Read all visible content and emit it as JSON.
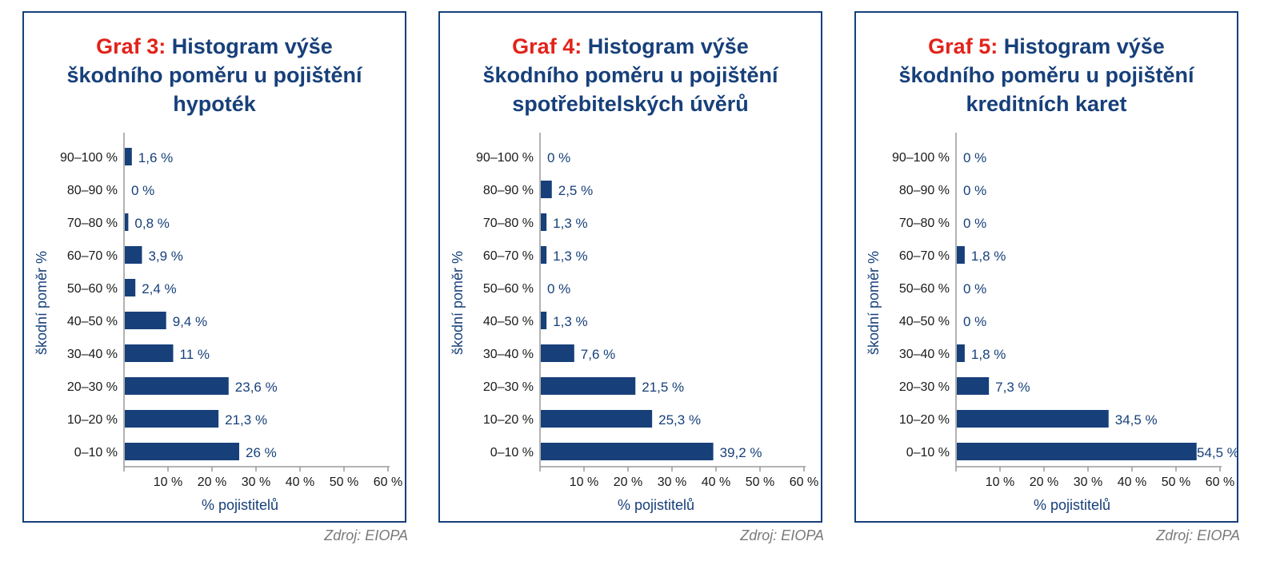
{
  "colors": {
    "bar": "#17407a",
    "title_prefix": "#e2231a",
    "title": "#17407a",
    "axis": "#999999",
    "source": "#7a7a7a"
  },
  "chart_data": [
    {
      "type": "bar",
      "orientation": "horizontal",
      "title_prefix": "Graf 3:",
      "title": "Histogram výše škodního poměru u pojištění hypoték",
      "title_lines": [
        "Histogram výše",
        "škodního poměru u pojištění",
        "hypoték"
      ],
      "categories": [
        "90–100 %",
        "80–90 %",
        "70–80 %",
        "60–70 %",
        "50–60 %",
        "40–50 %",
        "30–40 %",
        "20–30 %",
        "10–20 %",
        "0–10 %"
      ],
      "values": [
        1.6,
        0,
        0.8,
        3.9,
        2.4,
        9.4,
        11,
        23.6,
        21.3,
        26
      ],
      "value_labels": [
        "1,6 %",
        "0 %",
        "0,8 %",
        "3,9 %",
        "2,4 %",
        "9,4 %",
        "11 %",
        "23,6 %",
        "21,3 %",
        "26 %"
      ],
      "xlabel": "% pojistitelů",
      "ylabel": "škodní poměr %",
      "xlim": [
        0,
        60
      ],
      "xticks": [
        "10 %",
        "20 %",
        "30 %",
        "40 %",
        "50 %",
        "60 %"
      ],
      "source": "Zdroj: EIOPA"
    },
    {
      "type": "bar",
      "orientation": "horizontal",
      "title_prefix": "Graf 4:",
      "title": "Histogram výše škodního poměru u pojištění spotřebitelských úvěrů",
      "title_lines": [
        "Histogram výše",
        "škodního poměru u pojištění",
        "spotřebitelských úvěrů"
      ],
      "categories": [
        "90–100 %",
        "80–90 %",
        "70–80 %",
        "60–70 %",
        "50–60 %",
        "40–50 %",
        "30–40 %",
        "20–30 %",
        "10–20 %",
        "0–10 %"
      ],
      "values": [
        0,
        2.5,
        1.3,
        1.3,
        0,
        1.3,
        7.6,
        21.5,
        25.3,
        39.2
      ],
      "value_labels": [
        "0 %",
        "2,5 %",
        "1,3 %",
        "1,3 %",
        "0 %",
        "1,3 %",
        "7,6 %",
        "21,5 %",
        "25,3 %",
        "39,2 %"
      ],
      "xlabel": "% pojistitelů",
      "ylabel": "škodní poměr %",
      "xlim": [
        0,
        60
      ],
      "xticks": [
        "10 %",
        "20 %",
        "30 %",
        "40 %",
        "50 %",
        "60 %"
      ],
      "source": "Zdroj: EIOPA"
    },
    {
      "type": "bar",
      "orientation": "horizontal",
      "title_prefix": "Graf 5:",
      "title": "Histogram výše škodního poměru u pojištění kreditních karet",
      "title_lines": [
        "Histogram výše",
        "škodního poměru u pojištění",
        "kreditních karet"
      ],
      "categories": [
        "90–100 %",
        "80–90 %",
        "70–80 %",
        "60–70 %",
        "50–60 %",
        "40–50 %",
        "30–40 %",
        "20–30 %",
        "10–20 %",
        "0–10 %"
      ],
      "values": [
        0,
        0,
        0,
        1.8,
        0,
        0,
        1.8,
        7.3,
        34.5,
        54.5
      ],
      "value_labels": [
        "0 %",
        "0 %",
        "0 %",
        "1,8 %",
        "0 %",
        "0 %",
        "1,8 %",
        "7,3 %",
        "34,5 %",
        "54,5 %"
      ],
      "xlabel": "% pojistitelů",
      "ylabel": "škodní poměr %",
      "xlim": [
        0,
        60
      ],
      "xticks": [
        "10 %",
        "20 %",
        "30 %",
        "40 %",
        "50 %",
        "60 %"
      ],
      "source": "Zdroj: EIOPA"
    }
  ]
}
